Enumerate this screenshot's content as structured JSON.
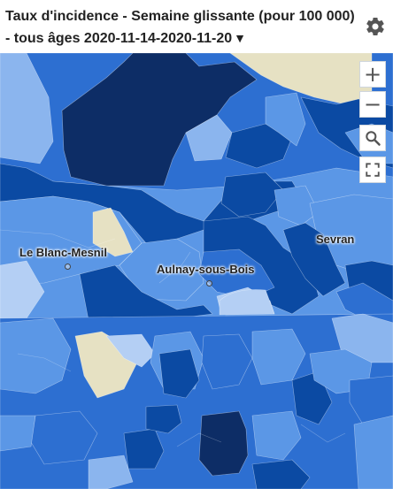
{
  "header": {
    "title_prefix": "Taux d'incidence - Semaine glissante (pour 100 000) - tous âges",
    "period": "2020-11-14-2020-11-20",
    "caret": "▼",
    "settings_icon": "gear-icon"
  },
  "map_controls": {
    "zoom_in": "+",
    "zoom_out": "−",
    "search_icon": "search-icon",
    "fullscreen_icon": "fullscreen-icon"
  },
  "places": {
    "le_blanc_mesnil": "Le Blanc-Mesnil",
    "aulnay_sous_bois": "Aulnay-sous-Bois",
    "sevran": "Sevran"
  },
  "colors": {
    "darkest": "#0d2d66",
    "dark": "#0b4aa3",
    "medium": "#2d6fd1",
    "light": "#5b97e6",
    "lighter": "#8bb5ee",
    "palest": "#b4cff4",
    "beige": "#e6e1c3",
    "background": "#ffffff"
  }
}
